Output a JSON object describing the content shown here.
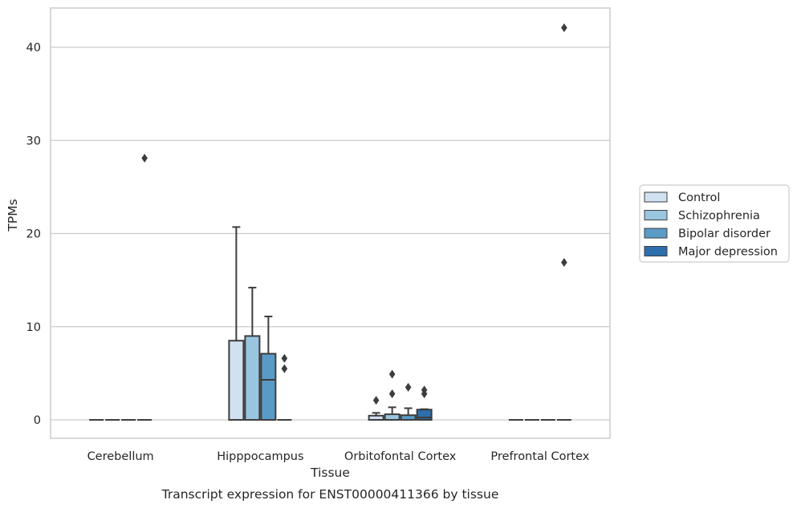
{
  "chart_data": {
    "type": "box",
    "title": "",
    "caption": "Transcript expression for ENST00000411366 by tissue",
    "xlabel": "Tissue",
    "ylabel": "TPMs",
    "ylim": [
      -2,
      44
    ],
    "yticks": [
      0,
      10,
      20,
      30,
      40
    ],
    "grid": "horizontal",
    "legend_position": "right",
    "categories": [
      "Cerebellum",
      "Hipppocampus",
      "Orbitofontal Cortex",
      "Prefrontal Cortex"
    ],
    "series": [
      {
        "name": "Control",
        "color": "#d0e1f2",
        "boxes": [
          {
            "category": "Cerebellum",
            "q1": 0,
            "median": 0,
            "q3": 0,
            "whisker_low": 0,
            "whisker_high": 0,
            "outliers": []
          },
          {
            "category": "Hipppocampus",
            "q1": 0,
            "median": 0,
            "q3": 8.5,
            "whisker_low": 0,
            "whisker_high": 20.7,
            "outliers": []
          },
          {
            "category": "Orbitofontal Cortex",
            "q1": 0,
            "median": 0,
            "q3": 0.45,
            "whisker_low": 0,
            "whisker_high": 0.75,
            "outliers": [
              2.1
            ]
          },
          {
            "category": "Prefrontal Cortex",
            "q1": 0,
            "median": 0,
            "q3": 0,
            "whisker_low": 0,
            "whisker_high": 0,
            "outliers": []
          }
        ]
      },
      {
        "name": "Schizophrenia",
        "color": "#9ac5e0",
        "boxes": [
          {
            "category": "Cerebellum",
            "q1": 0,
            "median": 0,
            "q3": 0,
            "whisker_low": 0,
            "whisker_high": 0,
            "outliers": []
          },
          {
            "category": "Hipppocampus",
            "q1": 0,
            "median": 0,
            "q3": 9.0,
            "whisker_low": 0,
            "whisker_high": 14.2,
            "outliers": []
          },
          {
            "category": "Orbitofontal Cortex",
            "q1": 0,
            "median": 0,
            "q3": 0.6,
            "whisker_low": 0,
            "whisker_high": 1.35,
            "outliers": [
              2.8,
              4.9
            ]
          },
          {
            "category": "Prefrontal Cortex",
            "q1": 0,
            "median": 0,
            "q3": 0,
            "whisker_low": 0,
            "whisker_high": 0,
            "outliers": []
          }
        ]
      },
      {
        "name": "Bipolar disorder",
        "color": "#5a9ac6",
        "boxes": [
          {
            "category": "Cerebellum",
            "q1": 0,
            "median": 0,
            "q3": 0,
            "whisker_low": 0,
            "whisker_high": 0,
            "outliers": []
          },
          {
            "category": "Hipppocampus",
            "q1": 0,
            "median": 4.3,
            "q3": 7.1,
            "whisker_low": 0,
            "whisker_high": 11.1,
            "outliers": []
          },
          {
            "category": "Orbitofontal Cortex",
            "q1": 0,
            "median": 0,
            "q3": 0.5,
            "whisker_low": 0,
            "whisker_high": 1.25,
            "outliers": [
              3.5
            ]
          },
          {
            "category": "Prefrontal Cortex",
            "q1": 0,
            "median": 0,
            "q3": 0,
            "whisker_low": 0,
            "whisker_high": 0,
            "outliers": []
          }
        ]
      },
      {
        "name": "Major depression",
        "color": "#2d6fad",
        "boxes": [
          {
            "category": "Cerebellum",
            "q1": 0,
            "median": 0,
            "q3": 0,
            "whisker_low": 0,
            "whisker_high": 0,
            "outliers": [
              28.1
            ]
          },
          {
            "category": "Hipppocampus",
            "q1": 0,
            "median": 0,
            "q3": 0,
            "whisker_low": 0,
            "whisker_high": 0,
            "outliers": [
              5.5,
              6.6
            ]
          },
          {
            "category": "Orbitofontal Cortex",
            "q1": 0,
            "median": 0.25,
            "q3": 1.1,
            "whisker_low": 0,
            "whisker_high": 1.15,
            "outliers": [
              2.8,
              3.2
            ]
          },
          {
            "category": "Prefrontal Cortex",
            "q1": 0,
            "median": 0,
            "q3": 0,
            "whisker_low": 0,
            "whisker_high": 0,
            "outliers": [
              16.9,
              42.1
            ]
          }
        ]
      }
    ]
  }
}
